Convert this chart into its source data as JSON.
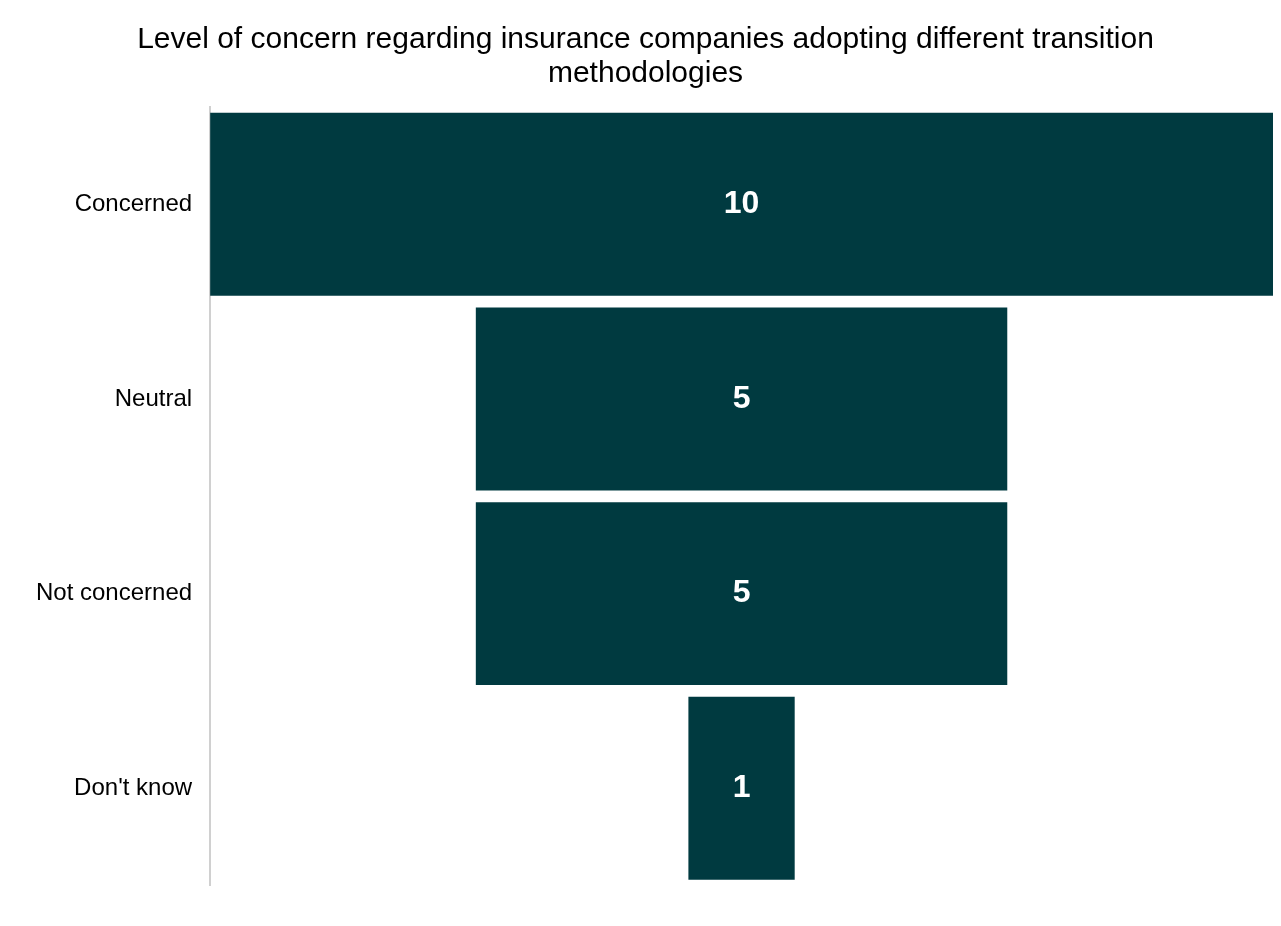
{
  "chart_data": {
    "type": "other",
    "title": "Level of concern regarding insurance companies adopting different transition methodologies",
    "categories": [
      "Concerned",
      "Neutral",
      "Not concerned",
      "Don't know"
    ],
    "values": [
      10,
      5,
      5,
      1
    ],
    "color": "#003a40",
    "data_labels": true
  }
}
